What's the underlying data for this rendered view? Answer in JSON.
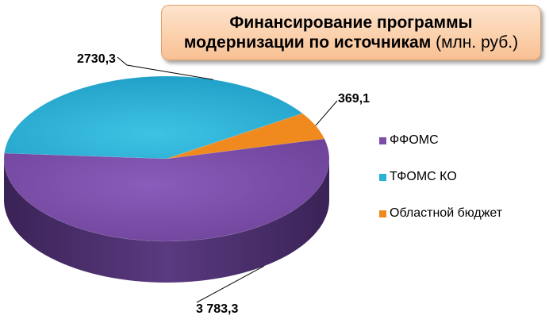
{
  "title": {
    "line1": "Финансирование программы",
    "line2_bold": "модернизации по источникам",
    "line2_normal": " (млн. руб.)"
  },
  "chart_data": {
    "type": "pie",
    "style": "3d",
    "categories": [
      "ФФОМС",
      "ТФОМС КО",
      "Областной бюджет"
    ],
    "values": [
      3783.3,
      2730.3,
      369.1
    ],
    "value_labels": [
      "3 783,3",
      "2730,3",
      "369,1"
    ],
    "colors": [
      "#7b4ea8",
      "#2ab2d6",
      "#f08a1e"
    ],
    "legend_position": "right"
  }
}
